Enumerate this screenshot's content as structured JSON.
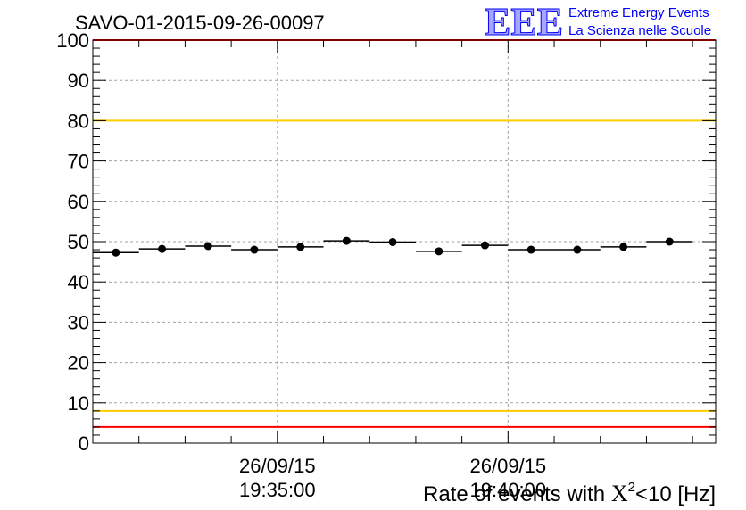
{
  "chart_data": {
    "type": "scatter",
    "title": "SAVO-01-2015-09-26-00097",
    "xlabel_prefix": "Rate of events with ",
    "xlabel_symbol": "X",
    "xlabel_sup": "2",
    "xlabel_suffix": "<10 [Hz]",
    "ylim": [
      0,
      100
    ],
    "y_ticks": [
      0,
      10,
      20,
      30,
      40,
      50,
      60,
      70,
      80,
      90,
      100
    ],
    "y_tick_labels": [
      "0",
      "10",
      "20",
      "30",
      "40",
      "50",
      "60",
      "70",
      "80",
      "90",
      "100"
    ],
    "xlim": [
      0,
      13.5
    ],
    "x_time_ticks": [
      {
        "x": 4,
        "date": "26/09/15",
        "time": "19:35:00"
      },
      {
        "x": 9,
        "date": "26/09/15",
        "time": "19:40:00"
      }
    ],
    "series": [
      {
        "name": "rate",
        "x": [
          0.5,
          1.5,
          2.5,
          3.5,
          4.5,
          5.5,
          6.5,
          7.5,
          8.5,
          9.5,
          10.5,
          11.5,
          12.5
        ],
        "values": [
          47.3,
          48.2,
          48.9,
          48.0,
          48.7,
          50.2,
          49.9,
          47.6,
          49.1,
          48.0,
          48.0,
          48.7,
          50.0
        ]
      }
    ],
    "reference_lines": [
      {
        "y": 100,
        "color": "#ff0000"
      },
      {
        "y": 80,
        "color": "#ffcc00"
      },
      {
        "y": 8,
        "color": "#ffcc00"
      },
      {
        "y": 4,
        "color": "#ff0000"
      }
    ],
    "grid": true,
    "colors": {
      "marker": "#000000",
      "frame": "#000000",
      "grid": "#a0a0a0"
    }
  },
  "logo": {
    "text": "EEE",
    "line1": "Extreme Energy Events",
    "line2": "La Scienza nelle Scuole",
    "color": "#0000ff"
  }
}
